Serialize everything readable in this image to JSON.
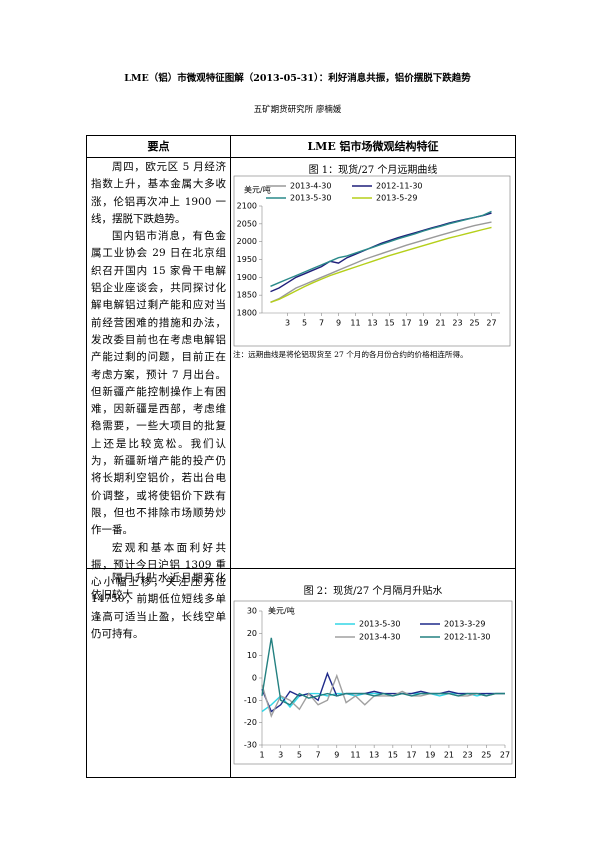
{
  "header": {
    "title": "LME（铝）市微观特征图解（2013-05-31）：利好消息共振，铝价摆脱下跌趋势",
    "author": "五矿期货研究所 廖楠媛"
  },
  "table": {
    "headers": [
      "要点",
      "LME 铝市场微观结构特征"
    ],
    "rows": [
      {
        "points": [
          "周四，欧元区 5 月经济指数上升，基本金属大多收涨，伦铝再次冲上 1900 一线，摆脱下跌趋势。",
          "国内铝市消息，有色金属工业协会 29 日在北京组织召开国内 15 家骨干电解铝企业座谈会，共同探讨化解电解铝过剩产能和应对当前经营困难的措施和办法，发改委目前也在考虑电解铝产能过剩的问题，目前正在考虑方案，预计 7 月出台。但新疆产能控制操作上有困难，因新疆是西部，考虑维稳需要，一些大项目的批复上还是比较宽松。我们认为，新疆新增产能的投产仍将长期利空铝价，若出台电价调整，或将使铝价下跌有限，但也不排除市场顺势炒作一番。",
          "宏观和基本面利好共振，预计今日沪铝 1309 重心小幅上移，关注压力位 14750，前期低位短线多单逢高可适当止盈，长线空单仍可持有。"
        ]
      },
      {
        "points": [
          "隔月升贴水近月期变化依旧较大"
        ]
      }
    ]
  },
  "chart_data": [
    {
      "type": "line",
      "title": "图 1：现货/27 个月远期曲线",
      "y_label": "美元/吨",
      "note": "注：远期曲线是将伦铝现货至 27 个月的各月份合约的价格相连所得。",
      "x": [
        1,
        2,
        3,
        4,
        5,
        6,
        7,
        8,
        9,
        10,
        11,
        12,
        13,
        14,
        15,
        16,
        17,
        18,
        19,
        20,
        21,
        22,
        23,
        24,
        25,
        26,
        27
      ],
      "xlim": [
        0,
        28
      ],
      "xticks": [
        3,
        5,
        7,
        9,
        11,
        13,
        15,
        17,
        19,
        21,
        23,
        25,
        27
      ],
      "ylim": [
        1800,
        2100
      ],
      "yticks": [
        1800,
        1850,
        1900,
        1950,
        2000,
        2050,
        2100
      ],
      "series": [
        {
          "name": "2013-4-30",
          "color": "#9a9a9a",
          "values": [
            1830,
            1840,
            1855,
            1870,
            1880,
            1890,
            1900,
            1910,
            1920,
            1930,
            1940,
            1950,
            1958,
            1966,
            1974,
            1982,
            1990,
            1997,
            2004,
            2011,
            2018,
            2025,
            2032,
            2039,
            2045,
            2050,
            2055
          ]
        },
        {
          "name": "2012-11-30",
          "color": "#1f1f7a",
          "values": [
            1860,
            1870,
            1885,
            1900,
            1910,
            1920,
            1930,
            1945,
            1940,
            1955,
            1965,
            1975,
            1985,
            1995,
            2003,
            2011,
            2018,
            2025,
            2032,
            2039,
            2045,
            2052,
            2058,
            2063,
            2068,
            2073,
            2080
          ]
        },
        {
          "name": "2013-5-30",
          "color": "#2a8a8a",
          "values": [
            1875,
            1885,
            1895,
            1905,
            1915,
            1925,
            1935,
            1945,
            1955,
            1960,
            1968,
            1976,
            1984,
            1992,
            2000,
            2008,
            2015,
            2022,
            2030,
            2037,
            2043,
            2050,
            2056,
            2062,
            2068,
            2074,
            2085
          ]
        },
        {
          "name": "2013-5-29",
          "color": "#b5cf1a",
          "values": [
            1830,
            1838,
            1850,
            1862,
            1874,
            1885,
            1895,
            1905,
            1913,
            1921,
            1929,
            1937,
            1945,
            1953,
            1961,
            1968,
            1975,
            1982,
            1989,
            1996,
            2003,
            2010,
            2016,
            2022,
            2028,
            2034,
            2040
          ]
        }
      ]
    },
    {
      "type": "line",
      "title": "图 2：现货/27 个月隔月升贴水",
      "y_label": "美元/吨",
      "x": [
        1,
        2,
        3,
        4,
        5,
        6,
        7,
        8,
        9,
        10,
        11,
        12,
        13,
        14,
        15,
        16,
        17,
        18,
        19,
        20,
        21,
        22,
        23,
        24,
        25,
        26,
        27
      ],
      "xlim": [
        1,
        27
      ],
      "xticks": [
        1,
        3,
        5,
        7,
        9,
        11,
        13,
        15,
        17,
        19,
        21,
        23,
        25,
        27
      ],
      "ylim": [
        -30,
        30
      ],
      "yticks": [
        -30,
        -20,
        -10,
        0,
        10,
        20,
        30
      ],
      "series": [
        {
          "name": "2013-5-30",
          "color": "#33d6e6",
          "values": [
            -15,
            -12,
            -8,
            -13,
            -8,
            -7,
            -7,
            -8,
            -7,
            -7,
            -8,
            -7,
            -7,
            -7,
            -8,
            -7,
            -7,
            -7,
            -7,
            -8,
            -7,
            -7,
            -7,
            -8,
            -7,
            -7,
            -7
          ]
        },
        {
          "name": "2013-3-29",
          "color": "#1f2a8a",
          "values": [
            -5,
            -15,
            -12,
            -6,
            -8,
            -7,
            -10,
            2,
            -8,
            -7,
            -7,
            -7,
            -6,
            -7,
            -7,
            -7,
            -7,
            -6,
            -7,
            -7,
            -6,
            -7,
            -7,
            -7,
            -7,
            -7,
            -7
          ]
        },
        {
          "name": "2013-4-30",
          "color": "#a0a0a0",
          "values": [
            -3,
            -17,
            -8,
            -10,
            -14,
            -7,
            -12,
            -10,
            1,
            -11,
            -8,
            -12,
            -8,
            -8,
            -8,
            -6,
            -8,
            -8,
            -7,
            -7,
            -7,
            -8,
            -8,
            -7,
            -8,
            -7,
            -7
          ]
        },
        {
          "name": "2012-11-30",
          "color": "#238080",
          "values": [
            -8,
            18,
            -10,
            -12,
            -7,
            -9,
            -8,
            -7,
            -8,
            -7,
            -7,
            -7,
            -8,
            -7,
            -8,
            -7,
            -8,
            -7,
            -7,
            -7,
            -7,
            -8,
            -7,
            -7,
            -8,
            -7,
            -7
          ]
        }
      ]
    }
  ]
}
